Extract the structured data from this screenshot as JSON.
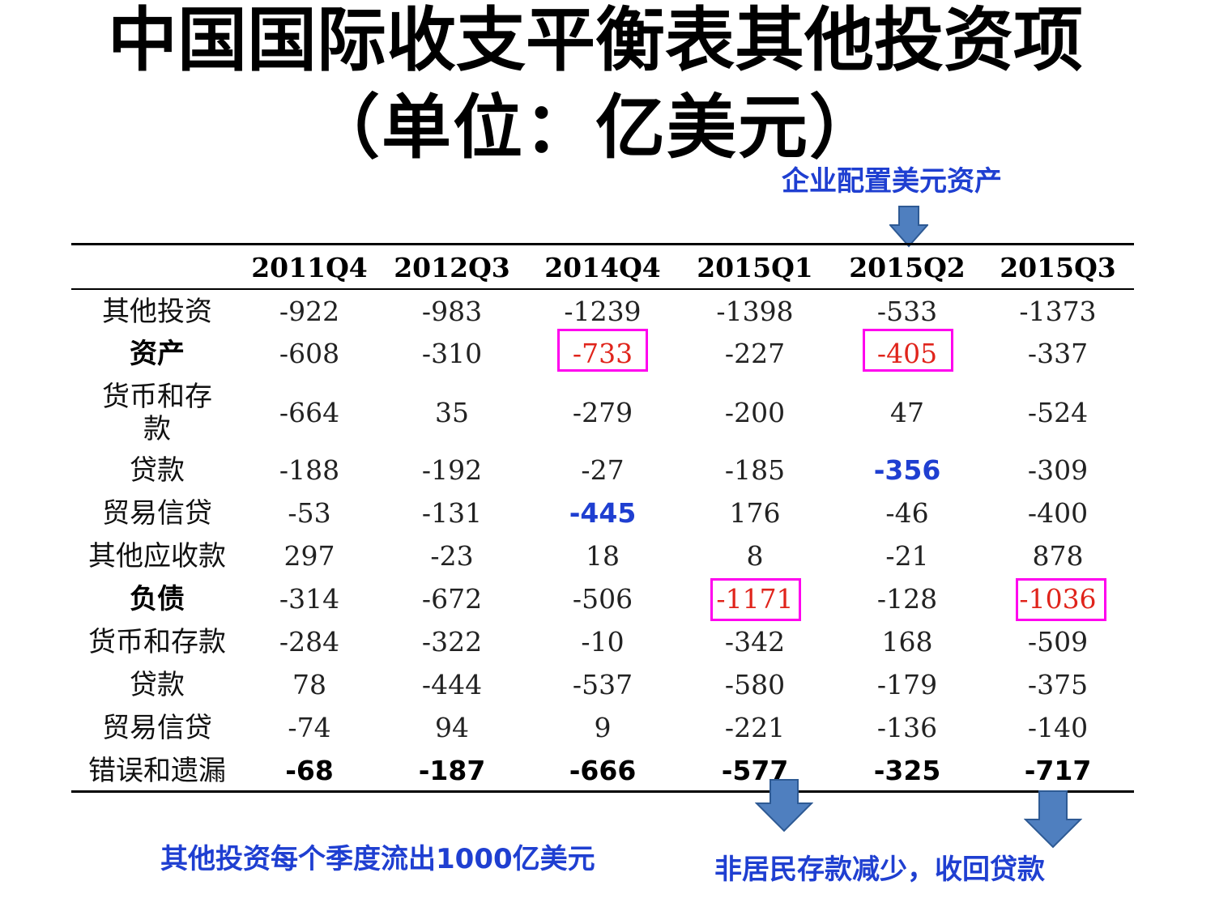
{
  "title": {
    "line1": "中国国际收支平衡表其他投资项",
    "line2": "（单位：亿美元）"
  },
  "annotations": {
    "top": "企业配置美元资产",
    "bottom_left": "其他投资每个季度流出1000亿美元",
    "bottom_right": "非居民存款减少，收回贷款"
  },
  "table": {
    "columns": [
      "2011Q4",
      "2012Q3",
      "2014Q4",
      "2015Q1",
      "2015Q2",
      "2015Q3"
    ],
    "rows": [
      {
        "label": "其他投资",
        "values": [
          "-922",
          "-983",
          "-1239",
          "-1398",
          "-533",
          "-1373"
        ]
      },
      {
        "label": "资产",
        "values": [
          "-608",
          "-310",
          "-733",
          "-227",
          "-405",
          "-337"
        ]
      },
      {
        "label_lines": [
          "货币和存",
          "款"
        ],
        "values": [
          "-664",
          "35",
          "-279",
          "-200",
          "47",
          "-524"
        ]
      },
      {
        "label": "贷款",
        "values": [
          "-188",
          "-192",
          "-27",
          "-185",
          "-356",
          "-309"
        ]
      },
      {
        "label": "贸易信贷",
        "values": [
          "-53",
          "-131",
          "-445",
          "176",
          "-46",
          "-400"
        ]
      },
      {
        "label": "其他应收款",
        "values": [
          "297",
          "-23",
          "18",
          "8",
          "-21",
          "878"
        ]
      },
      {
        "label": "负债",
        "values": [
          "-314",
          "-672",
          "-506",
          "-1171",
          "-128",
          "-1036"
        ]
      },
      {
        "label": "货币和存款",
        "values": [
          "-284",
          "-322",
          "-10",
          "-342",
          "168",
          "-509"
        ]
      },
      {
        "label": "贷款",
        "values": [
          "78",
          "-444",
          "-537",
          "-580",
          "-179",
          "-375"
        ]
      },
      {
        "label": "贸易信贷",
        "values": [
          "-74",
          "94",
          "9",
          "-221",
          "-136",
          "-140"
        ]
      },
      {
        "label": "错误和遗漏",
        "values": [
          "-68",
          "-187",
          "-666",
          "-577",
          "-325",
          "-717"
        ]
      }
    ]
  },
  "colors": {
    "annotation_blue": "#1f3fd1",
    "highlight_red": "#e0241b",
    "box_magenta": "#ff00ee",
    "arrow_fill": "#4f7fbf",
    "arrow_stroke": "#2e5a94"
  }
}
